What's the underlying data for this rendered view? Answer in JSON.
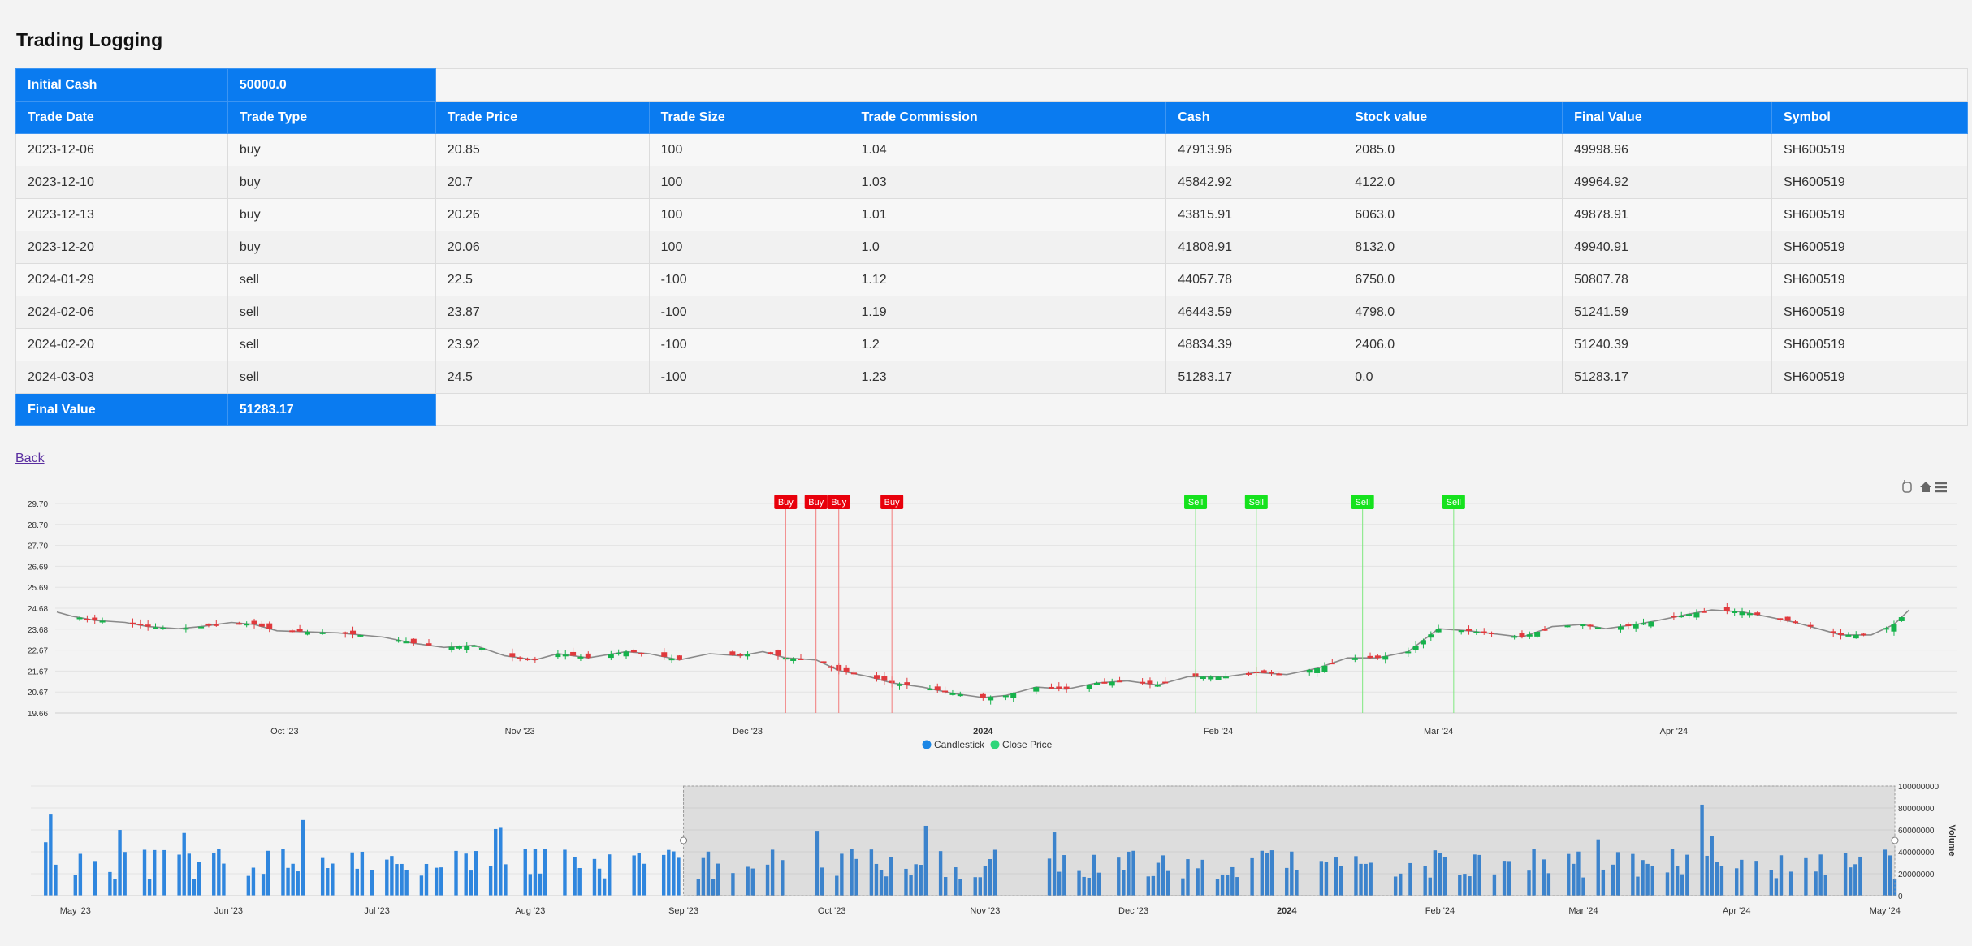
{
  "page": {
    "title": "Trading Logging",
    "back_link": "Back"
  },
  "summary": {
    "initial_cash_label": "Initial Cash",
    "initial_cash": "50000.0",
    "final_value_label": "Final Value",
    "final_value": "51283.17"
  },
  "table": {
    "columns": [
      "Trade Date",
      "Trade Type",
      "Trade Price",
      "Trade Size",
      "Trade Commission",
      "Cash",
      "Stock value",
      "Final Value",
      "Symbol"
    ],
    "rows": [
      [
        "2023-12-06",
        "buy",
        "20.85",
        "100",
        "1.04",
        "47913.96",
        "2085.0",
        "49998.96",
        "SH600519"
      ],
      [
        "2023-12-10",
        "buy",
        "20.7",
        "100",
        "1.03",
        "45842.92",
        "4122.0",
        "49964.92",
        "SH600519"
      ],
      [
        "2023-12-13",
        "buy",
        "20.26",
        "100",
        "1.01",
        "43815.91",
        "6063.0",
        "49878.91",
        "SH600519"
      ],
      [
        "2023-12-20",
        "buy",
        "20.06",
        "100",
        "1.0",
        "41808.91",
        "8132.0",
        "49940.91",
        "SH600519"
      ],
      [
        "2024-01-29",
        "sell",
        "22.5",
        "-100",
        "1.12",
        "44057.78",
        "6750.0",
        "50807.78",
        "SH600519"
      ],
      [
        "2024-02-06",
        "sell",
        "23.87",
        "-100",
        "1.19",
        "46443.59",
        "4798.0",
        "51241.59",
        "SH600519"
      ],
      [
        "2024-02-20",
        "sell",
        "23.92",
        "-100",
        "1.2",
        "48834.39",
        "2406.0",
        "51240.39",
        "SH600519"
      ],
      [
        "2024-03-03",
        "sell",
        "24.5",
        "-100",
        "1.23",
        "51283.17",
        "0.0",
        "51283.17",
        "SH600519"
      ]
    ]
  },
  "chart_data": [
    {
      "type": "candlestick",
      "y_ticks": [
        "29.70",
        "28.70",
        "27.70",
        "26.69",
        "25.69",
        "24.68",
        "23.68",
        "22.67",
        "21.67",
        "20.67",
        "19.66"
      ],
      "ylim": [
        19.66,
        29.7
      ],
      "x_ticks": [
        "Oct '23",
        "Nov '23",
        "Dec '23",
        "2024",
        "Feb '24",
        "Mar '24",
        "Apr '24"
      ],
      "x_tick_dates": [
        "2023-10-01",
        "2023-11-01",
        "2023-12-01",
        "2024-01-01",
        "2024-02-01",
        "2024-03-01",
        "2024-04-01"
      ],
      "xlim": [
        "2023-09-01",
        "2024-05-03"
      ],
      "legend": [
        "Candlestick",
        "Close Price"
      ],
      "close": [
        [
          "2023-09-01",
          24.5
        ],
        [
          "2023-09-03",
          24.3
        ],
        [
          "2023-09-06",
          24.1
        ],
        [
          "2023-09-10",
          24.0
        ],
        [
          "2023-09-13",
          23.8
        ],
        [
          "2023-09-17",
          23.7
        ],
        [
          "2023-09-20",
          23.8
        ],
        [
          "2023-09-24",
          24.0
        ],
        [
          "2023-09-27",
          23.9
        ],
        [
          "2023-09-30",
          23.6
        ],
        [
          "2023-10-08",
          23.5
        ],
        [
          "2023-10-14",
          23.3
        ],
        [
          "2023-10-18",
          23.0
        ],
        [
          "2023-10-22",
          22.8
        ],
        [
          "2023-10-26",
          22.9
        ],
        [
          "2023-10-30",
          22.4
        ],
        [
          "2023-11-03",
          22.2
        ],
        [
          "2023-11-06",
          22.5
        ],
        [
          "2023-11-10",
          22.3
        ],
        [
          "2023-11-15",
          22.6
        ],
        [
          "2023-11-18",
          22.5
        ],
        [
          "2023-11-22",
          22.2
        ],
        [
          "2023-11-26",
          22.5
        ],
        [
          "2023-11-30",
          22.4
        ],
        [
          "2023-12-03",
          22.6
        ],
        [
          "2023-12-06",
          22.3
        ],
        [
          "2023-12-10",
          22.2
        ],
        [
          "2023-12-13",
          21.7
        ],
        [
          "2023-12-17",
          21.4
        ],
        [
          "2023-12-20",
          21.1
        ],
        [
          "2023-12-24",
          20.9
        ],
        [
          "2023-12-28",
          20.6
        ],
        [
          "2024-01-01",
          20.4
        ],
        [
          "2024-01-04",
          20.5
        ],
        [
          "2024-01-08",
          20.9
        ],
        [
          "2024-01-12",
          20.8
        ],
        [
          "2024-01-16",
          21.1
        ],
        [
          "2024-01-20",
          21.2
        ],
        [
          "2024-01-24",
          21.0
        ],
        [
          "2024-01-28",
          21.4
        ],
        [
          "2024-02-02",
          21.4
        ],
        [
          "2024-02-06",
          21.6
        ],
        [
          "2024-02-10",
          21.5
        ],
        [
          "2024-02-14",
          21.8
        ],
        [
          "2024-02-18",
          22.3
        ],
        [
          "2024-02-22",
          22.3
        ],
        [
          "2024-02-26",
          22.6
        ],
        [
          "2024-03-01",
          23.7
        ],
        [
          "2024-03-05",
          23.6
        ],
        [
          "2024-03-12",
          23.3
        ],
        [
          "2024-03-16",
          23.8
        ],
        [
          "2024-03-20",
          23.9
        ],
        [
          "2024-03-23",
          23.7
        ],
        [
          "2024-03-27",
          23.9
        ],
        [
          "2024-03-30",
          24.1
        ],
        [
          "2024-04-03",
          24.4
        ],
        [
          "2024-04-06",
          24.6
        ],
        [
          "2024-04-10",
          24.5
        ],
        [
          "2024-04-13",
          24.3
        ],
        [
          "2024-04-17",
          24.0
        ],
        [
          "2024-04-20",
          23.7
        ],
        [
          "2024-04-23",
          23.4
        ],
        [
          "2024-04-27",
          23.4
        ],
        [
          "2024-04-30",
          23.9
        ],
        [
          "2024-05-02",
          24.6
        ]
      ],
      "signals": [
        {
          "label": "Buy",
          "date": "2023-12-06"
        },
        {
          "label": "Buy",
          "date": "2023-12-10"
        },
        {
          "label": "Buy",
          "date": "2023-12-13"
        },
        {
          "label": "Buy",
          "date": "2023-12-20"
        },
        {
          "label": "Sell",
          "date": "2024-01-29"
        },
        {
          "label": "Sell",
          "date": "2024-02-06"
        },
        {
          "label": "Sell",
          "date": "2024-02-20"
        },
        {
          "label": "Sell",
          "date": "2024-03-03"
        }
      ]
    },
    {
      "type": "bar",
      "series_name": "Volume",
      "y_ticks": [
        "100000000",
        "80000000",
        "60000000",
        "40000000",
        "20000000",
        "0"
      ],
      "ylim": [
        0,
        100000000
      ],
      "x_ticks": [
        "May '23",
        "Jun '23",
        "Jul '23",
        "Aug '23",
        "Sep '23",
        "Oct '23",
        "Nov '23",
        "Dec '23",
        "2024",
        "Feb '24",
        "Mar '24",
        "Apr '24",
        "May '24"
      ]
    }
  ],
  "colors": {
    "header_blue": "#0a7bf0",
    "up": "#16b24b",
    "down": "#e0393d",
    "buy_flag": "#e8000b",
    "sell_flag": "#15e21d",
    "volume_bar": "#2f86de"
  }
}
